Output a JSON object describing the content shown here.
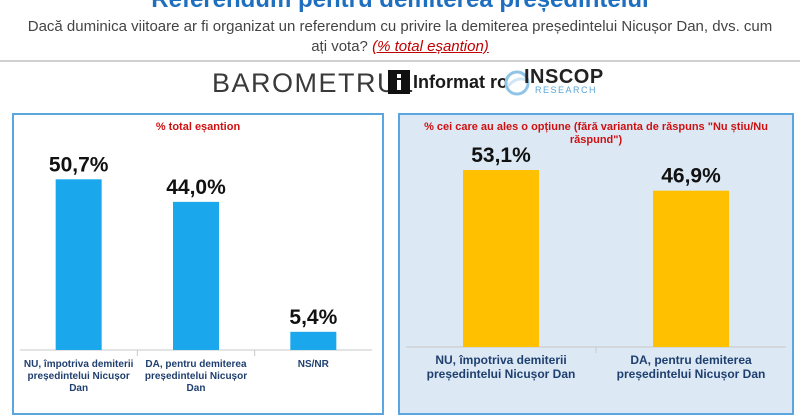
{
  "header": {
    "title": "Referendum pentru demiterea președintelui",
    "question": "Dacă duminica viitoare ar fi organizat un referendum cu privire la demiterea președintelui Nicușor Dan, dvs. cum ați vota?",
    "question_highlight": "(% total eșantion)"
  },
  "brand": {
    "barometrul": "BAROMETRUL",
    "informat": "Informat ro",
    "inscop": "INSCOP",
    "research": "RESEARCH"
  },
  "colors": {
    "title": "#1f6fc0",
    "bar_left": "#1aa7ec",
    "bar_right": "#ffc000",
    "subtitle": "#d01010",
    "panel_border": "#5aa6e0",
    "panel_right_bg": "#dce9f5"
  },
  "chart_data": [
    {
      "type": "bar",
      "title": "% total eșantion",
      "categories": [
        "NU, împotriva demiterii președintelui Nicușor Dan",
        "DA, pentru demiterea președintelui Nicușor Dan",
        "NS/NR"
      ],
      "values": [
        50.7,
        44.0,
        5.4
      ],
      "value_labels": [
        "50,7%",
        "44,0%",
        "5,4%"
      ],
      "ylim": [
        0,
        60
      ],
      "grid": false,
      "legend": "none"
    },
    {
      "type": "bar",
      "title": "% cei care au ales o opțiune (fără varianta de răspuns \"Nu știu/Nu răspund\")",
      "categories": [
        "NU, împotriva demiterii președintelui Nicușor Dan",
        "DA, pentru demiterea președintelui Nicușor Dan"
      ],
      "values": [
        53.1,
        46.9
      ],
      "value_labels": [
        "53,1%",
        "46,9%"
      ],
      "ylim": [
        0,
        60
      ],
      "grid": false,
      "legend": "none"
    }
  ]
}
